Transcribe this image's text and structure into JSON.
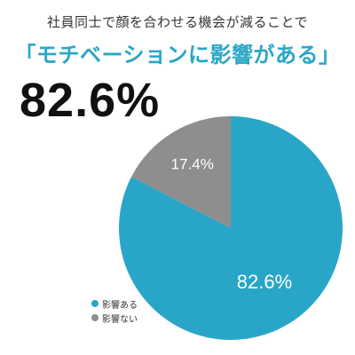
{
  "header": {
    "subtitle": "社員同士で顔を合わせる機会が減ることで",
    "headline": "「モチベーションに影響がある」",
    "big_number": "82.6%"
  },
  "colors": {
    "accent": "#29a6c7",
    "gray": "#8e8e8e",
    "text": "#111111"
  },
  "chart_data": {
    "type": "pie",
    "categories": [
      "影響ある",
      "影響ない"
    ],
    "values": [
      82.6,
      17.4
    ],
    "data_labels": [
      "82.6%",
      "17.4%"
    ],
    "colors": [
      "#29a6c7",
      "#8e8e8e"
    ],
    "start_angle_deg": 0,
    "direction": "clockwise",
    "legend_position": "bottom-left"
  }
}
